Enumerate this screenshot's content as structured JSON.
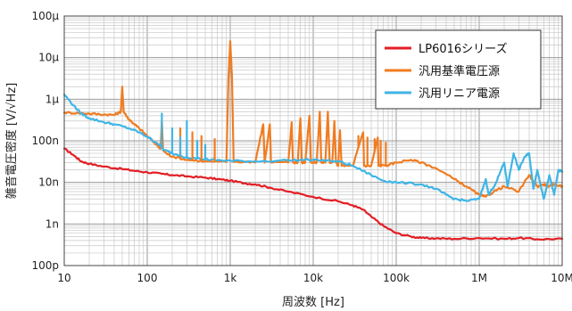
{
  "chart_data": {
    "type": "line",
    "title": "",
    "xlabel": "周波数 [Hz]",
    "ylabel": "雑音電圧密度 [V/√Hz]",
    "x_scale": "log",
    "y_scale": "log",
    "xlim": [
      10,
      10000000
    ],
    "ylim": [
      1e-10,
      0.0001
    ],
    "grid": true,
    "legend_position": "top-right",
    "x_ticks": [
      {
        "value": 10,
        "label": "10"
      },
      {
        "value": 100,
        "label": "100"
      },
      {
        "value": 1000,
        "label": "1k"
      },
      {
        "value": 10000,
        "label": "10k"
      },
      {
        "value": 100000,
        "label": "100k"
      },
      {
        "value": 1000000,
        "label": "1M"
      },
      {
        "value": 10000000,
        "label": "10M"
      }
    ],
    "y_ticks": [
      {
        "value": 0.0001,
        "label": "100μ"
      },
      {
        "value": 1e-05,
        "label": "10μ"
      },
      {
        "value": 1e-06,
        "label": "1μ"
      },
      {
        "value": 1e-07,
        "label": "100n"
      },
      {
        "value": 1e-08,
        "label": "10n"
      },
      {
        "value": 1e-09,
        "label": "1n"
      },
      {
        "value": 1e-10,
        "label": "100p"
      }
    ],
    "series": [
      {
        "name": "LP6016シリーズ",
        "color": "#e31e24",
        "points": [
          [
            10,
            6.5e-08
          ],
          [
            13,
            4.5e-08
          ],
          [
            16,
            3.2e-08
          ],
          [
            20,
            2.8e-08
          ],
          [
            30,
            2.4e-08
          ],
          [
            50,
            2.1e-08
          ],
          [
            70,
            1.9e-08
          ],
          [
            100,
            1.75e-08
          ],
          [
            150,
            1.6e-08
          ],
          [
            200,
            1.5e-08
          ],
          [
            300,
            1.4e-08
          ],
          [
            500,
            1.3e-08
          ],
          [
            700,
            1.2e-08
          ],
          [
            1000,
            1.1e-08
          ],
          [
            1500,
            9.5e-09
          ],
          [
            2000,
            9e-09
          ],
          [
            3000,
            7.5e-09
          ],
          [
            5000,
            6e-09
          ],
          [
            10000,
            4.5e-09
          ],
          [
            20000,
            3.5e-09
          ],
          [
            30000,
            2.8e-09
          ],
          [
            40000,
            2.2e-09
          ],
          [
            50000,
            1.5e-09
          ],
          [
            70000,
            9e-10
          ],
          [
            100000,
            6e-10
          ],
          [
            150000,
            5e-10
          ],
          [
            200000,
            4.6e-10
          ],
          [
            300000,
            4.5e-10
          ],
          [
            500000,
            4.4e-10
          ],
          [
            1000000,
            4.6e-10
          ],
          [
            2000000,
            4.4e-10
          ],
          [
            3000000,
            4.6e-10
          ],
          [
            5000000,
            4.3e-10
          ],
          [
            10000000,
            4.4e-10
          ]
        ]
      },
      {
        "name": "汎用基準電圧源",
        "color": "#f07c21",
        "points": [
          [
            10,
            4.8e-07
          ],
          [
            15,
            4.6e-07
          ],
          [
            20,
            4.5e-07
          ],
          [
            30,
            4.3e-07
          ],
          [
            40,
            4.2e-07
          ],
          [
            48,
            5e-07
          ],
          [
            50,
            2e-06
          ],
          [
            52,
            5e-07
          ],
          [
            60,
            3.3e-07
          ],
          [
            70,
            2.5e-07
          ],
          [
            80,
            2e-07
          ],
          [
            100,
            1.3e-07
          ],
          [
            130,
            8e-08
          ],
          [
            145,
            6.5e-08
          ],
          [
            150,
            3e-07
          ],
          [
            155,
            6e-08
          ],
          [
            170,
            5e-08
          ],
          [
            200,
            4.2e-08
          ],
          [
            300,
            3.5e-08
          ],
          [
            500,
            3.2e-08
          ],
          [
            900,
            3.1e-08
          ],
          [
            950,
            3e-06
          ],
          [
            1000,
            2.5e-05
          ],
          [
            1050,
            3.3e-06
          ],
          [
            1100,
            3.1e-08
          ],
          [
            2000,
            3e-08
          ],
          [
            2500,
            2.5e-07
          ],
          [
            2600,
            3e-08
          ],
          [
            3000,
            2.5e-07
          ],
          [
            3100,
            3e-08
          ],
          [
            5000,
            3e-08
          ],
          [
            5500,
            2.8e-07
          ],
          [
            5700,
            3e-08
          ],
          [
            6500,
            3e-08
          ],
          [
            7000,
            3.5e-07
          ],
          [
            7300,
            3e-08
          ],
          [
            8000,
            3e-08
          ],
          [
            9000,
            4e-07
          ],
          [
            9400,
            3e-08
          ],
          [
            11000,
            3e-08
          ],
          [
            12000,
            5e-07
          ],
          [
            12500,
            3e-08
          ],
          [
            14000,
            3e-08
          ],
          [
            15000,
            5e-07
          ],
          [
            15800,
            3e-08
          ],
          [
            17000,
            3e-08
          ],
          [
            18000,
            3e-07
          ],
          [
            18800,
            3e-08
          ],
          [
            20000,
            2.5e-08
          ],
          [
            21000,
            1.8e-07
          ],
          [
            22000,
            2.5e-08
          ],
          [
            30000,
            2.5e-08
          ],
          [
            40000,
            1.6e-07
          ],
          [
            41000,
            2.5e-08
          ],
          [
            50000,
            2.5e-08
          ],
          [
            60000,
            1.2e-07
          ],
          [
            61000,
            2.5e-08
          ],
          [
            80000,
            2.6e-08
          ],
          [
            100000,
            3e-08
          ],
          [
            150000,
            3.5e-08
          ],
          [
            200000,
            3e-08
          ],
          [
            300000,
            2.2e-08
          ],
          [
            500000,
            1.2e-08
          ],
          [
            700000,
            8e-09
          ],
          [
            1000000,
            5e-09
          ],
          [
            1200000,
            4.5e-09
          ],
          [
            1500000,
            6e-09
          ],
          [
            2000000,
            8e-09
          ],
          [
            3000000,
            6e-09
          ],
          [
            4000000,
            1.5e-08
          ],
          [
            5000000,
            8e-09
          ],
          [
            6000000,
            9e-09
          ],
          [
            7000000,
            8e-09
          ],
          [
            8000000,
            9e-09
          ],
          [
            10000000,
            8e-09
          ]
        ]
      },
      {
        "name": "汎用リニア電源",
        "color": "#3fb5e6",
        "points": [
          [
            10,
            1.3e-06
          ],
          [
            13,
            7e-07
          ],
          [
            16,
            4.5e-07
          ],
          [
            20,
            3.5e-07
          ],
          [
            30,
            2.8e-07
          ],
          [
            40,
            2.5e-07
          ],
          [
            60,
            2e-07
          ],
          [
            80,
            1.6e-07
          ],
          [
            100,
            1.25e-07
          ],
          [
            130,
            9e-08
          ],
          [
            160,
            6e-08
          ],
          [
            200,
            5e-08
          ],
          [
            300,
            4e-08
          ],
          [
            500,
            3.6e-08
          ],
          [
            700,
            3.4e-08
          ],
          [
            1000,
            3.3e-08
          ],
          [
            2000,
            3.2e-08
          ],
          [
            5000,
            3.4e-08
          ],
          [
            10000,
            3.5e-08
          ],
          [
            20000,
            3.2e-08
          ],
          [
            30000,
            2.5e-08
          ],
          [
            50000,
            1.5e-08
          ],
          [
            70000,
            1.1e-08
          ],
          [
            100000,
            1e-08
          ],
          [
            200000,
            9e-09
          ],
          [
            300000,
            7e-09
          ],
          [
            400000,
            5e-09
          ],
          [
            500000,
            4e-09
          ],
          [
            700000,
            3.6e-09
          ],
          [
            1000000,
            4e-09
          ],
          [
            1200000,
            1.2e-08
          ],
          [
            1300000,
            5e-09
          ],
          [
            1600000,
            1e-08
          ],
          [
            2000000,
            3e-08
          ],
          [
            2200000,
            8e-09
          ],
          [
            2600000,
            5e-08
          ],
          [
            3000000,
            2e-08
          ],
          [
            3500000,
            4e-08
          ],
          [
            4000000,
            5e-08
          ],
          [
            4500000,
            7e-09
          ],
          [
            5000000,
            2e-08
          ],
          [
            6000000,
            4e-09
          ],
          [
            7000000,
            1.5e-08
          ],
          [
            8000000,
            5e-09
          ],
          [
            9000000,
            2e-08
          ],
          [
            10000000,
            1.8e-08
          ]
        ]
      }
    ]
  },
  "spurs": [
    {
      "series": 1,
      "x": 250,
      "y": 2e-07
    },
    {
      "series": 1,
      "x": 350,
      "y": 1.6e-07
    },
    {
      "series": 1,
      "x": 450,
      "y": 1.3e-07
    },
    {
      "series": 1,
      "x": 650,
      "y": 1.1e-07
    },
    {
      "series": 1,
      "x": 35000,
      "y": 1.3e-07
    },
    {
      "series": 1,
      "x": 45000,
      "y": 1.2e-07
    },
    {
      "series": 1,
      "x": 55000,
      "y": 1.1e-07
    },
    {
      "series": 1,
      "x": 65000,
      "y": 1e-07
    },
    {
      "series": 1,
      "x": 75000,
      "y": 9e-08
    },
    {
      "series": 2,
      "x": 150,
      "y": 4.5e-07
    },
    {
      "series": 2,
      "x": 200,
      "y": 2e-07
    },
    {
      "series": 2,
      "x": 250,
      "y": 1.2e-07
    },
    {
      "series": 2,
      "x": 300,
      "y": 3e-07
    },
    {
      "series": 2,
      "x": 400,
      "y": 1e-07
    },
    {
      "series": 2,
      "x": 500,
      "y": 8e-08
    }
  ]
}
